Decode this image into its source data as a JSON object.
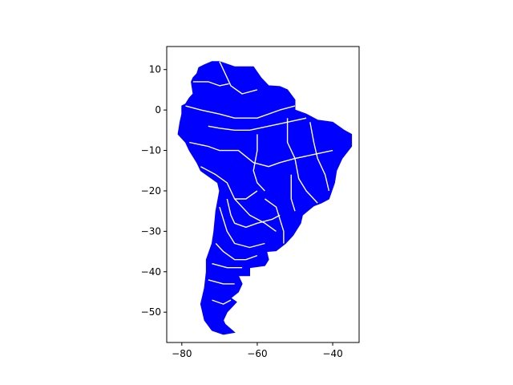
{
  "figure": {
    "background": "#ffffff",
    "fill_color": "#0000ff",
    "boundary_color": "#ffffff",
    "axis_color": "#000000"
  },
  "chart_data": {
    "type": "map",
    "title": "",
    "xlabel": "",
    "ylabel": "",
    "grid": false,
    "legend": "none",
    "xlim": [
      -84,
      -33
    ],
    "ylim": [
      -57.5,
      15.7
    ],
    "x_ticks": [
      -80,
      -60,
      -40
    ],
    "x_tick_labels": [
      "−80",
      "−60",
      "−40"
    ],
    "y_ticks": [
      10,
      0,
      -10,
      -20,
      -30,
      -40,
      -50
    ],
    "y_tick_labels": [
      "10",
      "0",
      "−10",
      "−20",
      "−30",
      "−40",
      "−50"
    ],
    "outline_lonlat": [
      [
        -72,
        12
      ],
      [
        -70,
        12
      ],
      [
        -66,
        10.7
      ],
      [
        -61,
        10.7
      ],
      [
        -59,
        8
      ],
      [
        -57,
        6
      ],
      [
        -54,
        5.8
      ],
      [
        -52,
        5
      ],
      [
        -50,
        2.5
      ],
      [
        -50,
        0
      ],
      [
        -47,
        -1
      ],
      [
        -44,
        -2.5
      ],
      [
        -40,
        -3
      ],
      [
        -37,
        -5
      ],
      [
        -35,
        -6
      ],
      [
        -35,
        -9
      ],
      [
        -37.5,
        -12
      ],
      [
        -39,
        -15
      ],
      [
        -39.5,
        -18
      ],
      [
        -41,
        -22
      ],
      [
        -43,
        -23
      ],
      [
        -45,
        -23.7
      ],
      [
        -48,
        -26
      ],
      [
        -48.5,
        -28
      ],
      [
        -50.5,
        -31
      ],
      [
        -52.5,
        -33
      ],
      [
        -55,
        -34.8
      ],
      [
        -57.5,
        -35
      ],
      [
        -57,
        -37
      ],
      [
        -58,
        -38.5
      ],
      [
        -62,
        -39
      ],
      [
        -62,
        -41
      ],
      [
        -65,
        -41
      ],
      [
        -64,
        -43
      ],
      [
        -65,
        -45
      ],
      [
        -67,
        -46.5
      ],
      [
        -65.5,
        -47.5
      ],
      [
        -68,
        -50
      ],
      [
        -69,
        -52
      ],
      [
        -68.5,
        -53
      ],
      [
        -66,
        -55
      ],
      [
        -69,
        -55.5
      ],
      [
        -72,
        -54.5
      ],
      [
        -74,
        -52
      ],
      [
        -75,
        -48
      ],
      [
        -74,
        -44
      ],
      [
        -73.5,
        -40
      ],
      [
        -73.5,
        -37
      ],
      [
        -72,
        -33
      ],
      [
        -71.5,
        -30
      ],
      [
        -71,
        -25
      ],
      [
        -70,
        -20
      ],
      [
        -70.5,
        -18
      ],
      [
        -75,
        -15
      ],
      [
        -76,
        -13
      ],
      [
        -78,
        -10
      ],
      [
        -79,
        -8
      ],
      [
        -81,
        -6
      ],
      [
        -80.5,
        -3
      ],
      [
        -80,
        -1
      ],
      [
        -80,
        1
      ],
      [
        -79,
        1.5
      ],
      [
        -78,
        3
      ],
      [
        -77,
        4
      ],
      [
        -77.5,
        7
      ],
      [
        -77,
        8
      ],
      [
        -76,
        9
      ],
      [
        -75.5,
        10.5
      ],
      [
        -74,
        11.2
      ],
      [
        -72,
        12
      ]
    ],
    "boundaries_lonlat": [
      [
        [
          -70,
          12
        ],
        [
          -68,
          8
        ],
        [
          -67,
          6
        ],
        [
          -64,
          4
        ],
        [
          -60,
          5
        ]
      ],
      [
        [
          -77,
          7
        ],
        [
          -73,
          7
        ],
        [
          -70,
          6
        ],
        [
          -67.5,
          6.5
        ]
      ],
      [
        [
          -79,
          1
        ],
        [
          -75,
          0
        ],
        [
          -70,
          -1
        ],
        [
          -66,
          -2
        ],
        [
          -60,
          -2
        ],
        [
          -54,
          0
        ],
        [
          -50,
          1
        ]
      ],
      [
        [
          -73,
          -4
        ],
        [
          -70,
          -4.5
        ],
        [
          -66,
          -5
        ],
        [
          -62,
          -5
        ],
        [
          -57,
          -4
        ],
        [
          -52,
          -3
        ],
        [
          -47,
          -2
        ]
      ],
      [
        [
          -78,
          -8
        ],
        [
          -73,
          -9
        ],
        [
          -70,
          -10
        ],
        [
          -65,
          -10
        ],
        [
          -61,
          -13
        ],
        [
          -57,
          -14
        ],
        [
          -54,
          -13
        ],
        [
          -50,
          -12
        ],
        [
          -45,
          -11
        ],
        [
          -40,
          -10
        ]
      ],
      [
        [
          -60,
          -6
        ],
        [
          -60,
          -10
        ],
        [
          -61,
          -15
        ],
        [
          -60,
          -18
        ],
        [
          -58,
          -20
        ]
      ],
      [
        [
          -52,
          -2
        ],
        [
          -52,
          -8
        ],
        [
          -50,
          -12
        ],
        [
          -49,
          -17
        ],
        [
          -47,
          -20
        ],
        [
          -44,
          -23
        ]
      ],
      [
        [
          -46,
          -3
        ],
        [
          -45,
          -8
        ],
        [
          -44,
          -12
        ],
        [
          -42,
          -16
        ],
        [
          -41,
          -20
        ]
      ],
      [
        [
          -75,
          -14
        ],
        [
          -71,
          -16
        ],
        [
          -68,
          -18
        ],
        [
          -66,
          -22
        ],
        [
          -63,
          -22
        ],
        [
          -60,
          -20
        ]
      ],
      [
        [
          -68,
          -22
        ],
        [
          -67,
          -26
        ],
        [
          -66,
          -28
        ],
        [
          -63,
          -29
        ],
        [
          -60,
          -28
        ],
        [
          -56,
          -27
        ],
        [
          -54,
          -26
        ]
      ],
      [
        [
          -70,
          -24
        ],
        [
          -68,
          -30
        ],
        [
          -66,
          -33
        ],
        [
          -62,
          -34
        ],
        [
          -58,
          -33
        ]
      ],
      [
        [
          -71,
          -33
        ],
        [
          -69,
          -35
        ],
        [
          -66,
          -37
        ],
        [
          -63,
          -37
        ],
        [
          -60,
          -36
        ]
      ],
      [
        [
          -72,
          -38
        ],
        [
          -68,
          -39
        ],
        [
          -64,
          -39
        ]
      ],
      [
        [
          -73,
          -42
        ],
        [
          -69,
          -43
        ],
        [
          -66,
          -43
        ]
      ],
      [
        [
          -72,
          -47
        ],
        [
          -69,
          -48
        ],
        [
          -67,
          -47
        ]
      ],
      [
        [
          -58,
          -22
        ],
        [
          -55,
          -24
        ],
        [
          -54,
          -27
        ],
        [
          -53,
          -30
        ],
        [
          -53,
          -33
        ]
      ],
      [
        [
          -66,
          -22
        ],
        [
          -62,
          -26
        ],
        [
          -58,
          -28
        ],
        [
          -55,
          -30
        ]
      ],
      [
        [
          -51,
          -16
        ],
        [
          -51,
          -22
        ],
        [
          -50,
          -25
        ]
      ]
    ]
  }
}
